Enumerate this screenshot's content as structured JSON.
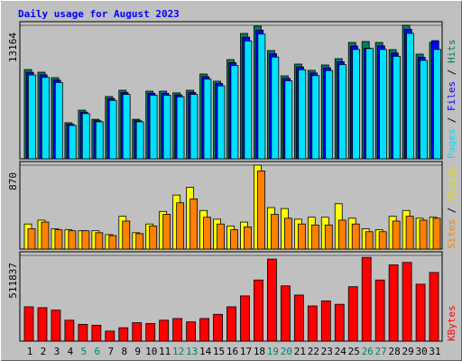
{
  "chart_data": [
    {
      "type": "bar",
      "title": "Daily usage for August 2023",
      "ylim": [
        0,
        13164
      ],
      "yticks": [
        13164
      ],
      "legend_separator": " / ",
      "series": [
        {
          "name": "Hits",
          "color": "#00805c",
          "values": [
            8800,
            8540,
            8000,
            3560,
            4800,
            3900,
            6140,
            6760,
            3900,
            6670,
            6670,
            6500,
            6760,
            8360,
            7650,
            9780,
            12360,
            13080,
            10670,
            8180,
            9340,
            8720,
            9250,
            9870,
            11470,
            11560,
            11470,
            10760,
            13164,
            10320,
            11470
          ]
        },
        {
          "name": "Files",
          "color": "#0000ff",
          "values": [
            8530,
            8280,
            7760,
            3400,
            4600,
            3760,
            5940,
            6540,
            3760,
            6460,
            6460,
            6300,
            6540,
            8100,
            7420,
            9480,
            11990,
            12690,
            10350,
            7930,
            9060,
            8460,
            8970,
            9570,
            11120,
            10900,
            11130,
            10440,
            12770,
            10010,
            11650
          ]
        },
        {
          "name": "Pages",
          "color": "#00e0ff",
          "values": [
            8270,
            8030,
            7520,
            3290,
            4460,
            3650,
            5760,
            6350,
            3650,
            6270,
            6270,
            6110,
            6350,
            7860,
            7190,
            9190,
            11620,
            12300,
            10030,
            7690,
            8780,
            8200,
            8700,
            9280,
            10780,
            10870,
            10780,
            10110,
            12370,
            9700,
            10780
          ]
        }
      ]
    },
    {
      "type": "bar",
      "ylim": [
        0,
        870
      ],
      "yticks": [
        870
      ],
      "legend_separator": " / ",
      "series": [
        {
          "name": "Visits",
          "color": "#ffff00",
          "values": [
            260,
            300,
            210,
            200,
            190,
            190,
            150,
            340,
            170,
            260,
            390,
            560,
            640,
            400,
            310,
            240,
            280,
            870,
            430,
            420,
            310,
            330,
            330,
            470,
            320,
            210,
            200,
            340,
            400,
            320,
            330
          ]
        },
        {
          "name": "Sites",
          "color": "#ff8000",
          "values": [
            210,
            280,
            200,
            190,
            190,
            170,
            140,
            290,
            160,
            240,
            360,
            480,
            520,
            330,
            260,
            200,
            230,
            810,
            360,
            320,
            260,
            250,
            250,
            300,
            260,
            180,
            180,
            290,
            340,
            300,
            320
          ]
        }
      ]
    },
    {
      "type": "bar",
      "ylim": [
        0,
        511837
      ],
      "yticks": [
        511837
      ],
      "categories": [
        "1",
        "2",
        "3",
        "4",
        "5",
        "6",
        "7",
        "8",
        "9",
        "10",
        "11",
        "12",
        "13",
        "14",
        "15",
        "16",
        "17",
        "18",
        "19",
        "20",
        "21",
        "22",
        "23",
        "24",
        "25",
        "26",
        "27",
        "28",
        "29",
        "30",
        "31"
      ],
      "category_colors": [
        "#000000",
        "#000000",
        "#000000",
        "#000000",
        "#00806c",
        "#00806c",
        "#000000",
        "#000000",
        "#000000",
        "#000000",
        "#000000",
        "#00806c",
        "#00806c",
        "#000000",
        "#000000",
        "#000000",
        "#000000",
        "#000000",
        "#00806c",
        "#00806c",
        "#000000",
        "#000000",
        "#000000",
        "#000000",
        "#000000",
        "#00806c",
        "#00806c",
        "#000000",
        "#000000",
        "#000000",
        "#000000"
      ],
      "series": [
        {
          "name": "KBytes",
          "color": "#ff0000",
          "values": [
            205000,
            200000,
            185000,
            125000,
            100000,
            95000,
            60000,
            80000,
            110000,
            105000,
            125000,
            135000,
            115000,
            135000,
            160000,
            205000,
            270000,
            365000,
            490000,
            330000,
            275000,
            210000,
            240000,
            220000,
            325000,
            500000,
            365000,
            455000,
            470000,
            340000,
            410000
          ]
        }
      ]
    }
  ]
}
